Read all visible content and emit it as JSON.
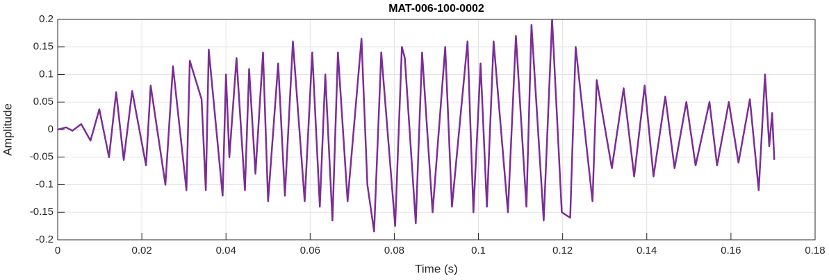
{
  "chart_data": {
    "type": "line",
    "title": "MAT-006-100-0002",
    "xlabel": "Time (s)",
    "ylabel": "Amplitude",
    "xlim": [
      0,
      0.18
    ],
    "ylim": [
      -0.2,
      0.2
    ],
    "xticks": [
      0,
      0.02,
      0.04,
      0.06,
      0.08,
      0.1,
      0.12,
      0.14,
      0.16,
      0.18
    ],
    "yticks": [
      -0.2,
      -0.15,
      -0.1,
      -0.05,
      0,
      0.05,
      0.1,
      0.15,
      0.2
    ],
    "grid": true,
    "series": [
      {
        "name": "MAT-006-100-0002",
        "color": "#7b2d96",
        "x": [
          0,
          0.002,
          0.0035,
          0.0056,
          0.0078,
          0.0099,
          0.0122,
          0.0139,
          0.0157,
          0.0177,
          0.021,
          0.0221,
          0.0256,
          0.0274,
          0.0306,
          0.0314,
          0.0342,
          0.0352,
          0.0359,
          0.0392,
          0.04,
          0.0408,
          0.0425,
          0.0445,
          0.0455,
          0.047,
          0.0488,
          0.05,
          0.0524,
          0.054,
          0.0559,
          0.0587,
          0.0605,
          0.0623,
          0.0636,
          0.0653,
          0.0666,
          0.0689,
          0.0722,
          0.0736,
          0.0752,
          0.0769,
          0.0802,
          0.0818,
          0.0825,
          0.0851,
          0.0866,
          0.0891,
          0.0921,
          0.0937,
          0.0974,
          0.0988,
          0.1005,
          0.102,
          0.1036,
          0.107,
          0.1089,
          0.1114,
          0.1126,
          0.1155,
          0.1175,
          0.1198,
          0.1218,
          0.1231,
          0.1271,
          0.1281,
          0.1317,
          0.1345,
          0.137,
          0.1395,
          0.1416,
          0.1444,
          0.1466,
          0.1494,
          0.1516,
          0.1549,
          0.1567,
          0.1595,
          0.1618,
          0.1645,
          0.1666,
          0.1681,
          0.1691,
          0.1698,
          0.1703
        ],
        "values": [
          0,
          0.004,
          -0.002,
          0.01,
          -0.02,
          0.037,
          -0.05,
          0.068,
          -0.055,
          0.07,
          -0.065,
          0.08,
          -0.1,
          0.115,
          -0.11,
          0.125,
          0.055,
          -0.11,
          0.145,
          -0.12,
          0.1,
          -0.05,
          0.13,
          -0.11,
          0.11,
          -0.08,
          0.14,
          -0.13,
          0.12,
          -0.12,
          0.16,
          -0.13,
          0.14,
          -0.14,
          0.1,
          -0.165,
          0.14,
          -0.13,
          0.165,
          -0.1,
          -0.185,
          0.14,
          -0.175,
          0.15,
          0.13,
          -0.17,
          0.14,
          -0.15,
          0.15,
          -0.14,
          0.16,
          -0.15,
          0.12,
          -0.14,
          0.16,
          -0.15,
          0.17,
          -0.14,
          0.19,
          -0.165,
          0.2,
          -0.15,
          -0.16,
          0.15,
          -0.13,
          0.09,
          -0.07,
          0.075,
          -0.085,
          0.08,
          -0.085,
          0.06,
          -0.07,
          0.05,
          -0.065,
          0.05,
          -0.065,
          0.05,
          -0.06,
          0.055,
          -0.11,
          0.1,
          -0.03,
          0.03,
          -0.055
        ]
      }
    ]
  }
}
